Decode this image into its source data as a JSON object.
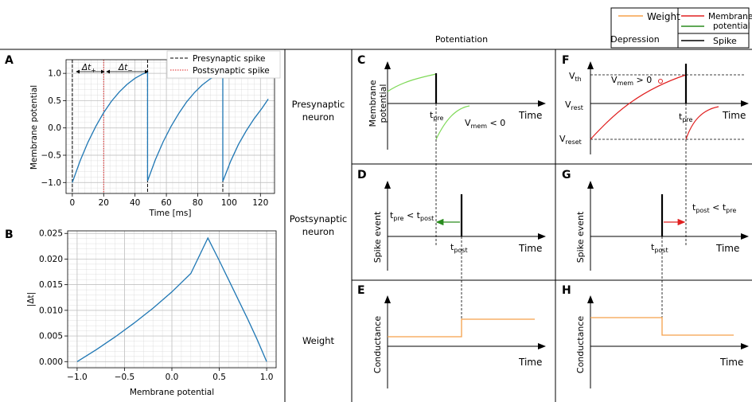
{
  "legend": {
    "weight": "Weight",
    "membrane": "Membrane",
    "potential": "potential",
    "spike": "Spike"
  },
  "columns": {
    "potentiation": "Potentiation",
    "depression": "Depression"
  },
  "rows": {
    "presynaptic_1": "Presynaptic",
    "presynaptic_2": "neuron",
    "postsynaptic_1": "Postsynaptic",
    "postsynaptic_2": "neuron",
    "weight": "Weight"
  },
  "panel_labels": {
    "A": "A",
    "B": "B",
    "C": "C",
    "D": "D",
    "E": "E",
    "F": "F",
    "G": "G",
    "H": "H"
  },
  "panel_a": {
    "xlabel": "Time [ms]",
    "ylabel": "Membrane potential",
    "legend_pre": "Presynaptic spike",
    "legend_post": "Postsynaptic spike",
    "dt_plus": "Δt",
    "dt_plus_sub": "+",
    "dt_minus": "Δt",
    "dt_minus_sub": "−"
  },
  "panel_b": {
    "xlabel": "Membrane potential",
    "ylabel": "|Δt|"
  },
  "panel_text": {
    "membrane_potential_1": "Membrane",
    "membrane_potential_2": "potential",
    "time": "Time",
    "t": "t",
    "pre": "pre",
    "post": "post",
    "v": "V",
    "mem": "mem",
    "lt0": " < 0",
    "gt0": " > 0",
    "th": "th",
    "rest": "rest",
    "reset": "reset",
    "lt": " < t",
    "spike_event": "Spike event",
    "conductance": "Conductance"
  },
  "colors": {
    "blue": "#1f77b4",
    "orange": "#f5a04a",
    "green": "#7ed957",
    "darkgreen": "#2a8c1f",
    "red": "#e02020",
    "grid": "#d8d8d8"
  },
  "chart_data": [
    {
      "type": "line",
      "panel": "A",
      "xlabel": "Time [ms]",
      "ylabel": "Membrane potential",
      "xlim": [
        -4,
        129
      ],
      "ylim": [
        -1.2,
        1.25
      ],
      "xticks": [
        0,
        20,
        40,
        60,
        80,
        100,
        120
      ],
      "yticks": [
        -1.0,
        -0.5,
        0.0,
        0.5,
        1.0
      ],
      "series": [
        {
          "x": [
            0,
            5,
            10,
            15,
            20,
            25,
            30,
            35,
            40,
            45,
            48,
            48,
            53,
            58,
            63,
            68,
            73,
            78,
            83,
            88,
            93,
            96,
            96,
            101,
            106,
            111,
            116,
            121,
            125
          ],
          "values": [
            -1.0,
            -0.6,
            -0.26,
            0.03,
            0.28,
            0.49,
            0.66,
            0.8,
            0.91,
            0.99,
            1.02,
            -0.97,
            -0.58,
            -0.25,
            0.03,
            0.27,
            0.48,
            0.65,
            0.79,
            0.9,
            0.98,
            1.01,
            -0.98,
            -0.61,
            -0.3,
            -0.05,
            0.17,
            0.36,
            0.53
          ]
        }
      ],
      "presynaptic_spikes": [
        0,
        48,
        96
      ],
      "postsynaptic_spikes": [
        20
      ],
      "grid": true,
      "legend": "top-right"
    },
    {
      "type": "line",
      "panel": "B",
      "xlabel": "Membrane potential",
      "ylabel": "|Δt|",
      "xlim": [
        -1.1,
        1.1
      ],
      "ylim": [
        -0.0012,
        0.0255
      ],
      "xticks": [
        -1.0,
        -0.5,
        0.0,
        0.5,
        1.0
      ],
      "yticks": [
        0.0,
        0.005,
        0.01,
        0.015,
        0.02,
        0.025
      ],
      "series": [
        {
          "x": [
            -1.0,
            -0.8,
            -0.6,
            -0.4,
            -0.2,
            0.0,
            0.2,
            0.38,
            0.5,
            0.6,
            0.7,
            0.8,
            0.9,
            1.0
          ],
          "values": [
            0.0,
            0.0023,
            0.0048,
            0.0075,
            0.0104,
            0.0136,
            0.0172,
            0.0241,
            0.0197,
            0.0159,
            0.0121,
            0.0083,
            0.0043,
            0.0
          ]
        }
      ],
      "grid": true
    }
  ]
}
